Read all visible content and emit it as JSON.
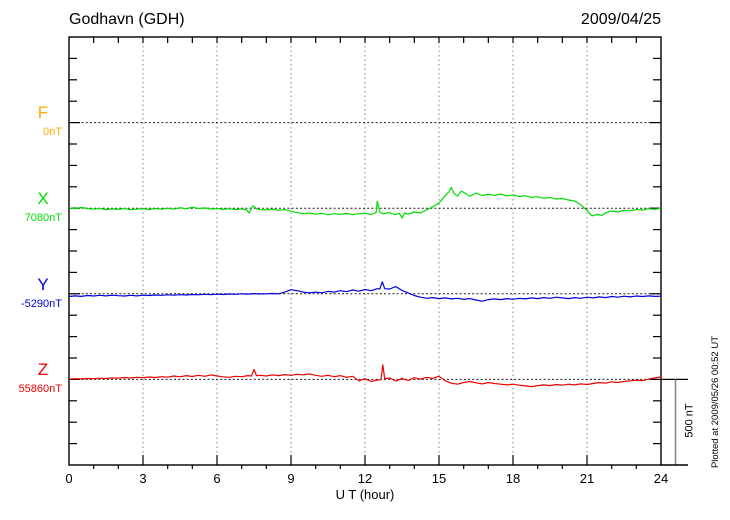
{
  "header": {
    "title": "Godhavn (GDH)",
    "date": "2009/04/25"
  },
  "xaxis": {
    "title": "U T (hour)",
    "ticks": [
      "0",
      "3",
      "6",
      "9",
      "12",
      "15",
      "18",
      "21",
      "24"
    ]
  },
  "annotations": {
    "scale_bar": "500 nT",
    "plotted_at": "Plotted at 2009/05/26 00:52 UT"
  },
  "chart_data": {
    "type": "line",
    "title": "Godhavn (GDH)",
    "date": "2009/04/25",
    "xlabel": "U T (hour)",
    "x_range": [
      0,
      24
    ],
    "x_ticks": [
      0,
      3,
      6,
      9,
      12,
      15,
      18,
      21,
      24
    ],
    "gridline_hours": [
      3,
      6,
      9,
      12,
      15,
      18,
      21
    ],
    "grid": "dotted",
    "baseline_separation_nT": 500,
    "scale_bar_nT": 500,
    "series": [
      {
        "name": "F",
        "baseline_label": "0nT",
        "baseline_nT": 0,
        "color": "#FFAA00",
        "points": []
      },
      {
        "name": "X",
        "baseline_label": "7080nT",
        "baseline_nT": 7080,
        "color": "#00DE00",
        "points": [
          [
            0,
            2
          ],
          [
            0.25,
            -3
          ],
          [
            0.5,
            4
          ],
          [
            0.75,
            -2
          ],
          [
            1,
            -6
          ],
          [
            1.25,
            -1
          ],
          [
            1.5,
            -8
          ],
          [
            1.75,
            -4
          ],
          [
            2,
            -7
          ],
          [
            2.25,
            -2
          ],
          [
            2.5,
            -9
          ],
          [
            2.75,
            -5
          ],
          [
            3,
            -3
          ],
          [
            3.25,
            -8
          ],
          [
            3.5,
            -2
          ],
          [
            3.75,
            -6
          ],
          [
            4,
            0
          ],
          [
            4.25,
            -5
          ],
          [
            4.5,
            3
          ],
          [
            4.75,
            -4
          ],
          [
            5,
            6
          ],
          [
            5.25,
            -2
          ],
          [
            5.5,
            2
          ],
          [
            5.75,
            -5
          ],
          [
            6,
            -2
          ],
          [
            6.25,
            -7
          ],
          [
            6.5,
            -3
          ],
          [
            6.75,
            -8
          ],
          [
            7,
            -4
          ],
          [
            7.2,
            -10
          ],
          [
            7.3,
            -28
          ],
          [
            7.45,
            14
          ],
          [
            7.6,
            -2
          ],
          [
            7.75,
            -8
          ],
          [
            8,
            -10
          ],
          [
            8.25,
            -5
          ],
          [
            8.5,
            -12
          ],
          [
            8.75,
            -8
          ],
          [
            9,
            -18
          ],
          [
            9.25,
            -26
          ],
          [
            9.5,
            -32
          ],
          [
            9.75,
            -28
          ],
          [
            10,
            -35
          ],
          [
            10.25,
            -30
          ],
          [
            10.5,
            -38
          ],
          [
            10.75,
            -32
          ],
          [
            11,
            -36
          ],
          [
            11.25,
            -30
          ],
          [
            11.5,
            -38
          ],
          [
            11.75,
            -33
          ],
          [
            12,
            -30
          ],
          [
            12.25,
            -37
          ],
          [
            12.45,
            -25
          ],
          [
            12.5,
            40
          ],
          [
            12.6,
            -22
          ],
          [
            12.75,
            -33
          ],
          [
            13,
            -25
          ],
          [
            13.2,
            -38
          ],
          [
            13.4,
            -30
          ],
          [
            13.5,
            -58
          ],
          [
            13.6,
            -28
          ],
          [
            13.75,
            -35
          ],
          [
            14,
            -22
          ],
          [
            14.25,
            -28
          ],
          [
            14.5,
            -10
          ],
          [
            14.75,
            8
          ],
          [
            15,
            30
          ],
          [
            15.2,
            65
          ],
          [
            15.4,
            95
          ],
          [
            15.5,
            122
          ],
          [
            15.6,
            88
          ],
          [
            15.75,
            70
          ],
          [
            15.9,
            100
          ],
          [
            16,
            92
          ],
          [
            16.25,
            70
          ],
          [
            16.5,
            88
          ],
          [
            16.75,
            74
          ],
          [
            17,
            82
          ],
          [
            17.25,
            75
          ],
          [
            17.5,
            83
          ],
          [
            17.75,
            72
          ],
          [
            18,
            78
          ],
          [
            18.25,
            68
          ],
          [
            18.5,
            73
          ],
          [
            18.75,
            63
          ],
          [
            19,
            67
          ],
          [
            19.25,
            58
          ],
          [
            19.5,
            63
          ],
          [
            19.75,
            53
          ],
          [
            20,
            57
          ],
          [
            20.25,
            48
          ],
          [
            20.5,
            42
          ],
          [
            20.75,
            20
          ],
          [
            21,
            -12
          ],
          [
            21.2,
            -45
          ],
          [
            21.4,
            -36
          ],
          [
            21.6,
            -42
          ],
          [
            21.75,
            -28
          ],
          [
            22,
            -16
          ],
          [
            22.25,
            -22
          ],
          [
            22.5,
            -12
          ],
          [
            22.75,
            -15
          ],
          [
            23,
            -7
          ],
          [
            23.25,
            -11
          ],
          [
            23.5,
            -3
          ],
          [
            23.75,
            -7
          ],
          [
            24,
            2
          ]
        ]
      },
      {
        "name": "Y",
        "baseline_label": "-5290nT",
        "baseline_nT": -5290,
        "color": "#0000DD",
        "points": [
          [
            0,
            -16
          ],
          [
            0.25,
            -12
          ],
          [
            0.5,
            -15
          ],
          [
            0.75,
            -10
          ],
          [
            1,
            -13
          ],
          [
            1.25,
            -9
          ],
          [
            1.5,
            -12
          ],
          [
            1.75,
            -8
          ],
          [
            2,
            -11
          ],
          [
            2.25,
            -13
          ],
          [
            2.5,
            -9
          ],
          [
            2.75,
            -12
          ],
          [
            3,
            -8
          ],
          [
            3.25,
            -10
          ],
          [
            3.5,
            -7
          ],
          [
            3.75,
            -9
          ],
          [
            4,
            -6
          ],
          [
            4.25,
            -8
          ],
          [
            4.5,
            -5
          ],
          [
            4.75,
            -7
          ],
          [
            5,
            -4
          ],
          [
            5.25,
            -6
          ],
          [
            5.5,
            -3
          ],
          [
            5.75,
            -5
          ],
          [
            6,
            -2
          ],
          [
            6.25,
            -4
          ],
          [
            6.5,
            -1
          ],
          [
            6.75,
            -3
          ],
          [
            7,
            0
          ],
          [
            7.25,
            -2
          ],
          [
            7.5,
            1
          ],
          [
            7.75,
            -1
          ],
          [
            8,
            0
          ],
          [
            8.25,
            2
          ],
          [
            8.5,
            0
          ],
          [
            8.75,
            10
          ],
          [
            9,
            24
          ],
          [
            9.25,
            18
          ],
          [
            9.5,
            10
          ],
          [
            9.75,
            6
          ],
          [
            10,
            10
          ],
          [
            10.25,
            6
          ],
          [
            10.5,
            14
          ],
          [
            10.75,
            10
          ],
          [
            11,
            18
          ],
          [
            11.25,
            12
          ],
          [
            11.5,
            22
          ],
          [
            11.75,
            15
          ],
          [
            12,
            25
          ],
          [
            12.25,
            18
          ],
          [
            12.5,
            30
          ],
          [
            12.6,
            28
          ],
          [
            12.7,
            70
          ],
          [
            12.8,
            30
          ],
          [
            13,
            28
          ],
          [
            13.25,
            42
          ],
          [
            13.5,
            20
          ],
          [
            13.75,
            5
          ],
          [
            14,
            -10
          ],
          [
            14.25,
            -20
          ],
          [
            14.5,
            -26
          ],
          [
            14.75,
            -22
          ],
          [
            15,
            -28
          ],
          [
            15.25,
            -24
          ],
          [
            15.5,
            -30
          ],
          [
            15.75,
            -26
          ],
          [
            16,
            -32
          ],
          [
            16.25,
            -28
          ],
          [
            16.5,
            -36
          ],
          [
            16.75,
            -43
          ],
          [
            17,
            -34
          ],
          [
            17.25,
            -30
          ],
          [
            17.5,
            -34
          ],
          [
            17.75,
            -28
          ],
          [
            18,
            -32
          ],
          [
            18.25,
            -26
          ],
          [
            18.5,
            -30
          ],
          [
            18.75,
            -24
          ],
          [
            19,
            -28
          ],
          [
            19.25,
            -22
          ],
          [
            19.5,
            -26
          ],
          [
            19.75,
            -20
          ],
          [
            20,
            -24
          ],
          [
            20.25,
            -28
          ],
          [
            20.5,
            -22
          ],
          [
            20.75,
            -26
          ],
          [
            21,
            -20
          ],
          [
            21.25,
            -24
          ],
          [
            21.5,
            -18
          ],
          [
            21.75,
            -22
          ],
          [
            22,
            -16
          ],
          [
            22.25,
            -20
          ],
          [
            22.5,
            -14
          ],
          [
            22.75,
            -18
          ],
          [
            23,
            -13
          ],
          [
            23.25,
            -16
          ],
          [
            23.5,
            -12
          ],
          [
            23.75,
            -15
          ],
          [
            24,
            -14
          ]
        ]
      },
      {
        "name": "Z",
        "baseline_label": "55860nT",
        "baseline_nT": 55860,
        "color": "#EE0000",
        "points": [
          [
            0,
            2
          ],
          [
            0.25,
            4
          ],
          [
            0.5,
            3
          ],
          [
            0.75,
            5
          ],
          [
            1,
            4
          ],
          [
            1.25,
            7
          ],
          [
            1.5,
            5
          ],
          [
            1.75,
            9
          ],
          [
            2,
            7
          ],
          [
            2.25,
            11
          ],
          [
            2.5,
            8
          ],
          [
            2.75,
            12
          ],
          [
            3,
            10
          ],
          [
            3.25,
            14
          ],
          [
            3.5,
            11
          ],
          [
            3.75,
            16
          ],
          [
            4,
            13
          ],
          [
            4.25,
            20
          ],
          [
            4.5,
            15
          ],
          [
            4.75,
            22
          ],
          [
            5,
            17
          ],
          [
            5.25,
            24
          ],
          [
            5.5,
            18
          ],
          [
            5.75,
            26
          ],
          [
            6,
            20
          ],
          [
            6.25,
            15
          ],
          [
            6.5,
            12
          ],
          [
            6.75,
            18
          ],
          [
            7,
            16
          ],
          [
            7.25,
            22
          ],
          [
            7.4,
            20
          ],
          [
            7.5,
            58
          ],
          [
            7.6,
            22
          ],
          [
            7.75,
            24
          ],
          [
            8,
            20
          ],
          [
            8.25,
            26
          ],
          [
            8.5,
            22
          ],
          [
            8.75,
            28
          ],
          [
            9,
            24
          ],
          [
            9.25,
            30
          ],
          [
            9.5,
            26
          ],
          [
            9.75,
            32
          ],
          [
            10,
            24
          ],
          [
            10.25,
            18
          ],
          [
            10.5,
            24
          ],
          [
            10.75,
            16
          ],
          [
            11,
            22
          ],
          [
            11.25,
            12
          ],
          [
            11.5,
            18
          ],
          [
            11.75,
            -8
          ],
          [
            12,
            4
          ],
          [
            12.25,
            -12
          ],
          [
            12.5,
            -4
          ],
          [
            12.65,
            -2
          ],
          [
            12.72,
            85
          ],
          [
            12.8,
            4
          ],
          [
            13,
            8
          ],
          [
            13.25,
            -10
          ],
          [
            13.5,
            6
          ],
          [
            13.75,
            -6
          ],
          [
            14,
            10
          ],
          [
            14.25,
            2
          ],
          [
            14.5,
            12
          ],
          [
            14.75,
            6
          ],
          [
            15,
            18
          ],
          [
            15.25,
            -8
          ],
          [
            15.5,
            -22
          ],
          [
            15.75,
            -28
          ],
          [
            16,
            -18
          ],
          [
            16.25,
            -12
          ],
          [
            16.5,
            -20
          ],
          [
            16.75,
            -26
          ],
          [
            17,
            -18
          ],
          [
            17.25,
            -24
          ],
          [
            17.5,
            -28
          ],
          [
            17.75,
            -32
          ],
          [
            18,
            -28
          ],
          [
            18.25,
            -34
          ],
          [
            18.5,
            -38
          ],
          [
            18.75,
            -42
          ],
          [
            19,
            -36
          ],
          [
            19.25,
            -32
          ],
          [
            19.5,
            -36
          ],
          [
            19.75,
            -30
          ],
          [
            20,
            -34
          ],
          [
            20.25,
            -28
          ],
          [
            20.5,
            -32
          ],
          [
            20.75,
            -26
          ],
          [
            21,
            -30
          ],
          [
            21.25,
            -24
          ],
          [
            21.5,
            -18
          ],
          [
            21.75,
            -22
          ],
          [
            22,
            -14
          ],
          [
            22.25,
            -18
          ],
          [
            22.5,
            -12
          ],
          [
            22.75,
            -8
          ],
          [
            23,
            -4
          ],
          [
            23.25,
            -7
          ],
          [
            23.5,
            2
          ],
          [
            23.75,
            8
          ],
          [
            24,
            15
          ]
        ]
      }
    ]
  }
}
